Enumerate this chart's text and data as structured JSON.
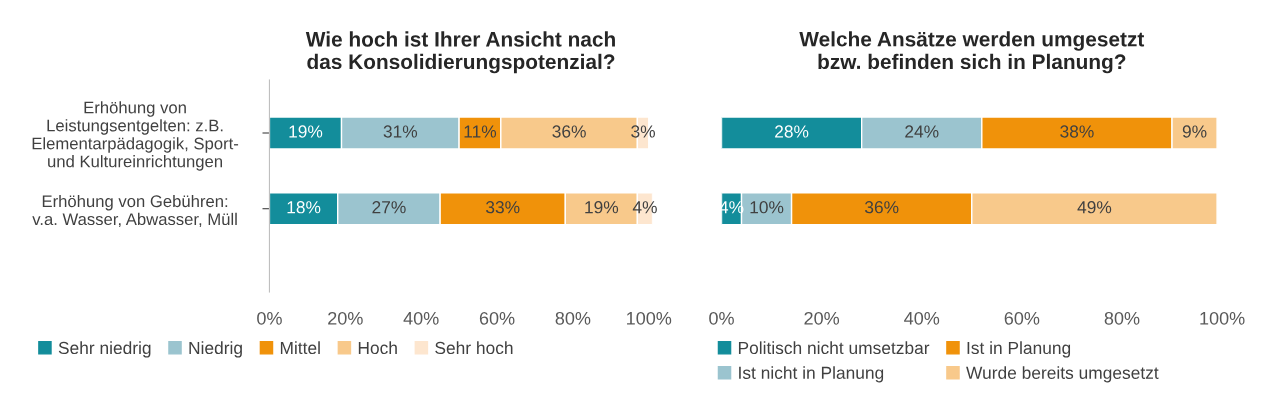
{
  "chart_data": [
    {
      "type": "bar",
      "orientation": "horizontal",
      "stacked": true,
      "title": "Wie hoch ist Ihrer Ansicht nach\ndas Konsolidierungspotenzial?",
      "categories": [
        "Erhöhung von\nLeistungsentgelten: z.B.\nElementarpädagogik, Sport-\nund Kultureinrichtungen",
        "Erhöhung von Gebühren:\nv.a. Wasser, Abwasser, Müll"
      ],
      "series": [
        {
          "name": "Sehr niedrig",
          "color": "#138d9b",
          "values": [
            19,
            18
          ],
          "value_labels": [
            "19%",
            "18%"
          ]
        },
        {
          "name": "Niedrig",
          "color": "#9bc4cf",
          "values": [
            31,
            27
          ],
          "value_labels": [
            "31%",
            "27%"
          ]
        },
        {
          "name": "Mittel",
          "color": "#f0920a",
          "values": [
            11,
            33
          ],
          "value_labels": [
            "11%",
            "33%"
          ]
        },
        {
          "name": "Hoch",
          "color": "#f8c98b",
          "values": [
            36,
            19
          ],
          "value_labels": [
            "36%",
            "19%"
          ]
        },
        {
          "name": "Sehr hoch",
          "color": "#fde6cf",
          "values": [
            3,
            4
          ],
          "value_labels": [
            "3%",
            "4%"
          ]
        }
      ],
      "xlim": [
        0,
        101
      ],
      "xticks": [
        {
          "value": 0,
          "label": "0%"
        },
        {
          "value": 20,
          "label": "20%"
        },
        {
          "value": 40,
          "label": "40%"
        },
        {
          "value": 60,
          "label": "60%"
        },
        {
          "value": 80,
          "label": "80%"
        },
        {
          "value": 100,
          "label": "100%"
        }
      ],
      "grid": false,
      "legend": "bottom"
    },
    {
      "type": "bar",
      "orientation": "horizontal",
      "stacked": true,
      "title": "Welche Ansätze werden umgesetzt\nbzw. befinden sich in Planung?",
      "categories": [
        null,
        null
      ],
      "series": [
        {
          "name": "Politisch nicht umsetzbar",
          "color": "#138d9b",
          "values": [
            28,
            4
          ],
          "value_labels": [
            "28%",
            "4%"
          ]
        },
        {
          "name": "Ist nicht in Planung",
          "color": "#9bc4cf",
          "values": [
            24,
            10
          ],
          "value_labels": [
            "24%",
            "10%"
          ]
        },
        {
          "name": "Ist in Planung",
          "color": "#f0920a",
          "values": [
            38,
            36
          ],
          "value_labels": [
            "38%",
            "36%"
          ]
        },
        {
          "name": "Wurde bereits umgesetzt",
          "color": "#f8c98b",
          "values": [
            9,
            49
          ],
          "value_labels": [
            "9%",
            "49%"
          ]
        }
      ],
      "xlim": [
        0,
        100
      ],
      "xticks": [
        {
          "value": 0,
          "label": "0%"
        },
        {
          "value": 20,
          "label": "20%"
        },
        {
          "value": 40,
          "label": "40%"
        },
        {
          "value": 60,
          "label": "60%"
        },
        {
          "value": 80,
          "label": "80%"
        },
        {
          "value": 100,
          "label": "100%"
        }
      ],
      "tick_labels": "x",
      "grid": false,
      "legend": "bottom"
    }
  ]
}
